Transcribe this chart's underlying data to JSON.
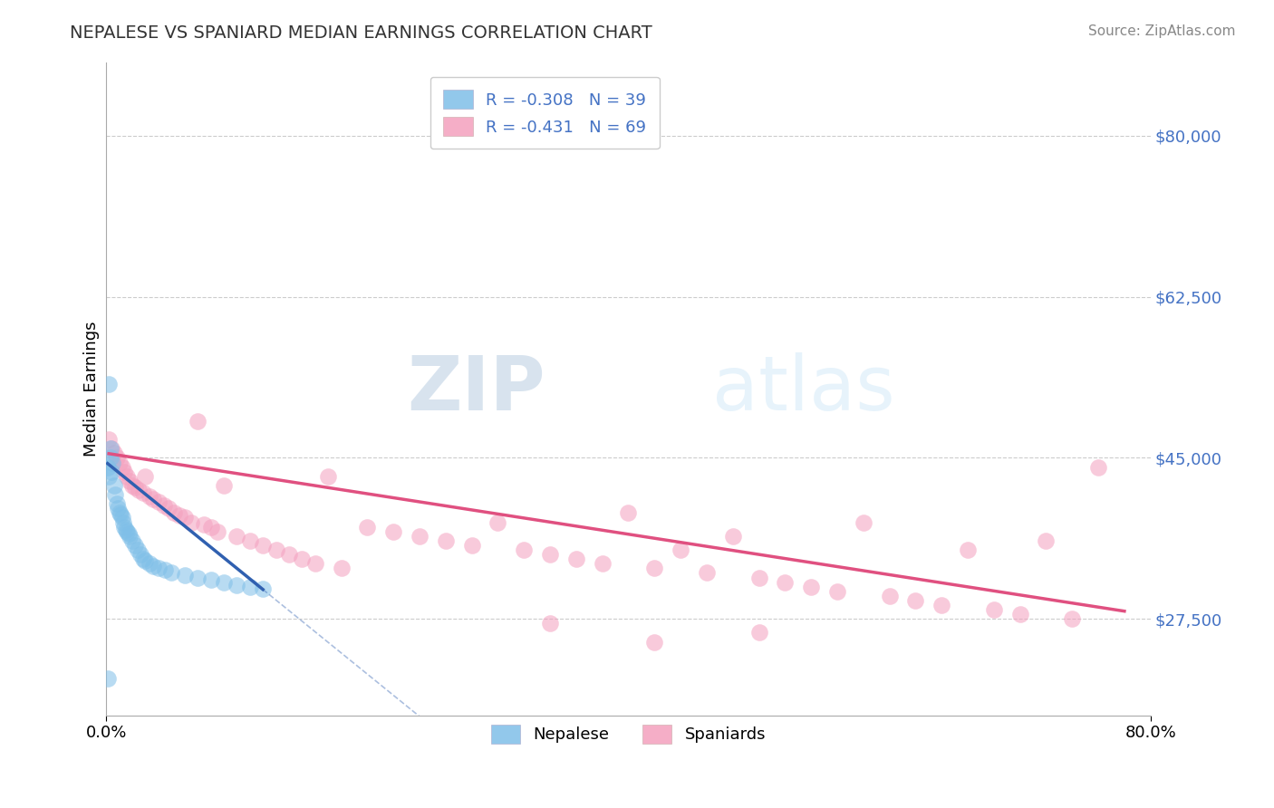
{
  "title": "NEPALESE VS SPANIARD MEDIAN EARNINGS CORRELATION CHART",
  "source": "Source: ZipAtlas.com",
  "ylabel": "Median Earnings",
  "y_ticks": [
    27500,
    45000,
    62500,
    80000
  ],
  "y_tick_labels": [
    "$27,500",
    "$45,000",
    "$62,500",
    "$80,000"
  ],
  "xlim": [
    0.0,
    0.8
  ],
  "ylim": [
    17000,
    88000
  ],
  "legend_r1": "R = -0.308   N = 39",
  "legend_r2": "R = -0.431   N = 69",
  "nepalese_color": "#7fbfe8",
  "spaniard_color": "#f4a0be",
  "nepalese_line_color": "#3060b0",
  "spaniard_line_color": "#e05080",
  "tick_color": "#4472c4",
  "watermark_zip": "ZIP",
  "watermark_atlas": "atlas",
  "nepalese_x": [
    0.001,
    0.002,
    0.003,
    0.004,
    0.005,
    0.006,
    0.007,
    0.008,
    0.009,
    0.01,
    0.011,
    0.012,
    0.013,
    0.014,
    0.015,
    0.016,
    0.017,
    0.018,
    0.02,
    0.022,
    0.024,
    0.026,
    0.028,
    0.03,
    0.033,
    0.036,
    0.04,
    0.045,
    0.05,
    0.06,
    0.07,
    0.08,
    0.09,
    0.1,
    0.11,
    0.12,
    0.002,
    0.003,
    0.001
  ],
  "nepalese_y": [
    44000,
    43000,
    46000,
    43500,
    44500,
    42000,
    41000,
    40000,
    39500,
    39000,
    38800,
    38500,
    38000,
    37500,
    37200,
    37000,
    36800,
    36500,
    36000,
    35500,
    35000,
    34500,
    34000,
    33800,
    33500,
    33200,
    33000,
    32800,
    32500,
    32200,
    32000,
    31800,
    31500,
    31200,
    31000,
    30800,
    53000,
    45000,
    21000
  ],
  "spaniard_x": [
    0.002,
    0.004,
    0.006,
    0.008,
    0.01,
    0.012,
    0.014,
    0.016,
    0.018,
    0.02,
    0.022,
    0.025,
    0.028,
    0.03,
    0.033,
    0.036,
    0.04,
    0.044,
    0.048,
    0.052,
    0.056,
    0.06,
    0.065,
    0.07,
    0.075,
    0.08,
    0.085,
    0.09,
    0.1,
    0.11,
    0.12,
    0.13,
    0.14,
    0.15,
    0.16,
    0.17,
    0.18,
    0.2,
    0.22,
    0.24,
    0.26,
    0.28,
    0.3,
    0.32,
    0.34,
    0.36,
    0.38,
    0.4,
    0.42,
    0.44,
    0.46,
    0.48,
    0.5,
    0.52,
    0.54,
    0.56,
    0.58,
    0.6,
    0.62,
    0.64,
    0.66,
    0.68,
    0.7,
    0.72,
    0.74,
    0.76,
    0.42,
    0.34,
    0.5
  ],
  "spaniard_y": [
    47000,
    46000,
    45500,
    45000,
    44500,
    44000,
    43500,
    43000,
    42500,
    42000,
    41800,
    41500,
    41200,
    43000,
    40800,
    40500,
    40200,
    39800,
    39500,
    39000,
    38700,
    38500,
    38000,
    49000,
    37800,
    37500,
    37000,
    42000,
    36500,
    36000,
    35500,
    35000,
    34500,
    34000,
    33500,
    43000,
    33000,
    37500,
    37000,
    36500,
    36000,
    35500,
    38000,
    35000,
    34500,
    34000,
    33500,
    39000,
    33000,
    35000,
    32500,
    36500,
    32000,
    31500,
    31000,
    30500,
    38000,
    30000,
    29500,
    29000,
    35000,
    28500,
    28000,
    36000,
    27500,
    44000,
    25000,
    27000,
    26000
  ],
  "nep_trend_x": [
    0.001,
    0.12
  ],
  "nep_trend_y_intercept": 44500,
  "nep_trend_slope": -115000,
  "spa_trend_x": [
    0.002,
    0.78
  ],
  "spa_trend_y_intercept": 45500,
  "spa_trend_slope": -22000
}
